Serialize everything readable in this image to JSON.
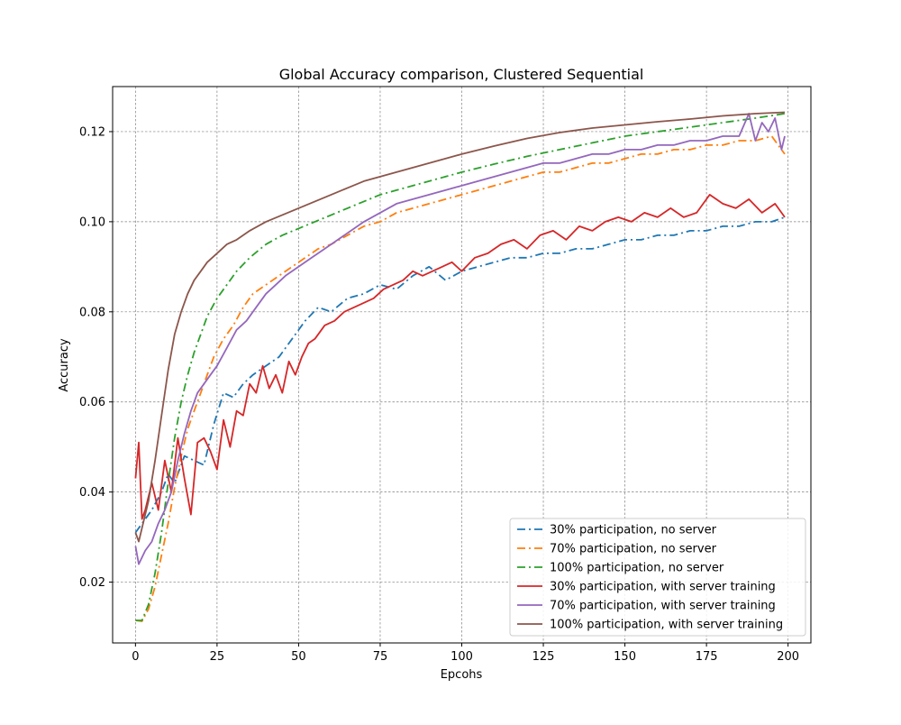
{
  "chart_data": {
    "type": "line",
    "title": "Global Accuracy comparison, Clustered Sequential",
    "xlabel": "Epcohs",
    "ylabel": "Accuracy",
    "xlim": [
      -7,
      207
    ],
    "ylim": [
      0.0065,
      0.13
    ],
    "xticks": [
      0,
      25,
      50,
      75,
      100,
      125,
      150,
      175,
      200
    ],
    "xtick_labels": [
      "0",
      "25",
      "50",
      "75",
      "100",
      "125",
      "150",
      "175",
      "200"
    ],
    "yticks": [
      0.02,
      0.04,
      0.06,
      0.08,
      0.1,
      0.12
    ],
    "ytick_labels": [
      "0.02",
      "0.04",
      "0.06",
      "0.08",
      "0.10",
      "0.12"
    ],
    "grid": true,
    "legend_position": "lower-right",
    "series": [
      {
        "name": "30% participation, no server",
        "color": "#1f77b4",
        "style": "dashdot",
        "x": [
          0,
          2,
          5,
          8,
          10,
          12,
          15,
          18,
          21,
          24,
          27,
          30,
          33,
          36,
          40,
          44,
          48,
          52,
          56,
          60,
          65,
          70,
          75,
          80,
          85,
          90,
          95,
          100,
          105,
          110,
          115,
          120,
          125,
          130,
          135,
          140,
          145,
          150,
          155,
          160,
          165,
          170,
          175,
          180,
          185,
          190,
          195,
          199
        ],
        "y": [
          0.031,
          0.033,
          0.036,
          0.04,
          0.044,
          0.042,
          0.048,
          0.047,
          0.046,
          0.055,
          0.062,
          0.061,
          0.064,
          0.066,
          0.068,
          0.07,
          0.074,
          0.078,
          0.081,
          0.08,
          0.083,
          0.084,
          0.086,
          0.085,
          0.088,
          0.09,
          0.087,
          0.089,
          0.09,
          0.091,
          0.092,
          0.092,
          0.093,
          0.093,
          0.094,
          0.094,
          0.095,
          0.096,
          0.096,
          0.097,
          0.097,
          0.098,
          0.098,
          0.099,
          0.099,
          0.1,
          0.1,
          0.101
        ]
      },
      {
        "name": "70% participation, no server",
        "color": "#ff7f0e",
        "style": "dashdot",
        "x": [
          0,
          2,
          4,
          6,
          8,
          10,
          12,
          14,
          16,
          18,
          20,
          22,
          24,
          27,
          30,
          33,
          36,
          40,
          44,
          48,
          52,
          56,
          60,
          65,
          70,
          75,
          80,
          85,
          90,
          95,
          100,
          105,
          110,
          115,
          120,
          125,
          130,
          135,
          140,
          145,
          150,
          155,
          160,
          165,
          170,
          175,
          180,
          185,
          190,
          195,
          199
        ],
        "y": [
          0.0115,
          0.0113,
          0.014,
          0.019,
          0.026,
          0.033,
          0.041,
          0.048,
          0.054,
          0.058,
          0.062,
          0.066,
          0.07,
          0.074,
          0.077,
          0.081,
          0.084,
          0.086,
          0.088,
          0.09,
          0.092,
          0.094,
          0.095,
          0.097,
          0.099,
          0.1,
          0.102,
          0.103,
          0.104,
          0.105,
          0.106,
          0.107,
          0.108,
          0.109,
          0.11,
          0.111,
          0.111,
          0.112,
          0.113,
          0.113,
          0.114,
          0.115,
          0.115,
          0.116,
          0.116,
          0.117,
          0.117,
          0.118,
          0.118,
          0.119,
          0.115
        ]
      },
      {
        "name": "100% participation, no server",
        "color": "#2ca02c",
        "style": "dashdot",
        "x": [
          0,
          2,
          4,
          6,
          8,
          10,
          12,
          14,
          16,
          18,
          20,
          22,
          25,
          28,
          31,
          35,
          40,
          45,
          50,
          55,
          60,
          65,
          70,
          75,
          80,
          85,
          90,
          95,
          100,
          110,
          120,
          130,
          140,
          150,
          160,
          170,
          180,
          190,
          199
        ],
        "y": [
          0.0115,
          0.0115,
          0.015,
          0.022,
          0.031,
          0.042,
          0.052,
          0.06,
          0.066,
          0.071,
          0.075,
          0.079,
          0.083,
          0.086,
          0.089,
          0.092,
          0.095,
          0.097,
          0.0985,
          0.1,
          0.1015,
          0.103,
          0.1045,
          0.106,
          0.107,
          0.108,
          0.109,
          0.11,
          0.111,
          0.1128,
          0.1145,
          0.116,
          0.1175,
          0.119,
          0.12,
          0.121,
          0.122,
          0.123,
          0.124
        ]
      },
      {
        "name": "30% participation, with server training",
        "color": "#d62728",
        "style": "solid",
        "x": [
          0,
          1,
          2,
          3,
          5,
          7,
          9,
          11,
          13,
          15,
          17,
          19,
          21,
          23,
          25,
          27,
          29,
          31,
          33,
          35,
          37,
          39,
          41,
          43,
          45,
          47,
          49,
          51,
          53,
          55,
          58,
          61,
          64,
          67,
          70,
          73,
          76,
          79,
          82,
          85,
          88,
          91,
          94,
          97,
          100,
          104,
          108,
          112,
          116,
          120,
          124,
          128,
          132,
          136,
          140,
          144,
          148,
          152,
          156,
          160,
          164,
          168,
          172,
          176,
          180,
          184,
          188,
          192,
          196,
          199
        ],
        "y": [
          0.043,
          0.051,
          0.034,
          0.036,
          0.042,
          0.036,
          0.047,
          0.04,
          0.052,
          0.043,
          0.035,
          0.051,
          0.052,
          0.049,
          0.045,
          0.056,
          0.05,
          0.058,
          0.057,
          0.064,
          0.062,
          0.068,
          0.063,
          0.066,
          0.062,
          0.069,
          0.066,
          0.07,
          0.073,
          0.074,
          0.077,
          0.078,
          0.08,
          0.081,
          0.082,
          0.083,
          0.085,
          0.086,
          0.087,
          0.089,
          0.088,
          0.089,
          0.09,
          0.091,
          0.089,
          0.092,
          0.093,
          0.095,
          0.096,
          0.094,
          0.097,
          0.098,
          0.096,
          0.099,
          0.098,
          0.1,
          0.101,
          0.1,
          0.102,
          0.101,
          0.103,
          0.101,
          0.102,
          0.106,
          0.104,
          0.103,
          0.105,
          0.102,
          0.104,
          0.101
        ]
      },
      {
        "name": "70% participation, with server training",
        "color": "#9467bd",
        "style": "solid",
        "x": [
          0,
          1,
          3,
          5,
          7,
          9,
          11,
          13,
          15,
          17,
          19,
          21,
          23,
          25,
          28,
          31,
          34,
          37,
          40,
          43,
          46,
          50,
          54,
          58,
          62,
          66,
          70,
          75,
          80,
          85,
          90,
          95,
          100,
          105,
          110,
          115,
          120,
          125,
          130,
          135,
          140,
          145,
          150,
          155,
          160,
          165,
          170,
          175,
          180,
          185,
          188,
          190,
          192,
          194,
          196,
          198,
          199
        ],
        "y": [
          0.028,
          0.024,
          0.027,
          0.029,
          0.033,
          0.036,
          0.04,
          0.047,
          0.053,
          0.058,
          0.062,
          0.064,
          0.066,
          0.068,
          0.072,
          0.076,
          0.078,
          0.081,
          0.084,
          0.086,
          0.088,
          0.09,
          0.092,
          0.094,
          0.096,
          0.098,
          0.1,
          0.102,
          0.104,
          0.105,
          0.106,
          0.107,
          0.108,
          0.109,
          0.11,
          0.111,
          0.112,
          0.113,
          0.113,
          0.114,
          0.115,
          0.115,
          0.116,
          0.116,
          0.117,
          0.117,
          0.118,
          0.118,
          0.119,
          0.119,
          0.124,
          0.118,
          0.122,
          0.12,
          0.123,
          0.116,
          0.119
        ]
      },
      {
        "name": "100% participation, with server training",
        "color": "#8c564b",
        "style": "solid",
        "x": [
          0,
          1,
          2,
          4,
          6,
          8,
          10,
          12,
          14,
          16,
          18,
          20,
          22,
          25,
          28,
          31,
          35,
          40,
          45,
          50,
          55,
          60,
          65,
          70,
          75,
          80,
          85,
          90,
          95,
          100,
          110,
          120,
          130,
          140,
          150,
          160,
          170,
          180,
          190,
          199
        ],
        "y": [
          0.031,
          0.029,
          0.032,
          0.038,
          0.047,
          0.057,
          0.067,
          0.075,
          0.08,
          0.084,
          0.087,
          0.089,
          0.091,
          0.093,
          0.095,
          0.096,
          0.098,
          0.1,
          0.1015,
          0.103,
          0.1045,
          0.106,
          0.1075,
          0.109,
          0.11,
          0.111,
          0.112,
          0.113,
          0.114,
          0.115,
          0.1168,
          0.1185,
          0.1198,
          0.1208,
          0.1215,
          0.1222,
          0.1228,
          0.1235,
          0.124,
          0.1243
        ]
      }
    ]
  }
}
